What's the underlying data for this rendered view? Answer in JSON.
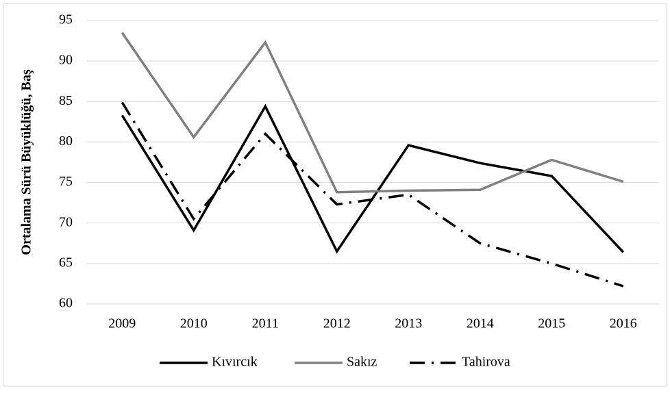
{
  "chart_data": {
    "type": "line",
    "y_label": "Ortalama Sürü Büyüklüğü, Baş",
    "categories": [
      "2009",
      "2010",
      "2011",
      "2012",
      "2013",
      "2014",
      "2015",
      "2016"
    ],
    "series": [
      {
        "name": "Kıvırcık",
        "color": "#000000",
        "dash": "solid",
        "values": [
          83.3,
          69.1,
          84.4,
          66.5,
          79.6,
          77.4,
          75.8,
          66.4
        ]
      },
      {
        "name": "Sakız",
        "color": "#808080",
        "dash": "solid",
        "values": [
          93.5,
          80.6,
          92.3,
          73.8,
          74.0,
          74.1,
          77.8,
          75.1
        ]
      },
      {
        "name": "Tahirova",
        "color": "#000000",
        "dash": "dashdot",
        "values": [
          84.9,
          70.5,
          81.0,
          72.3,
          73.5,
          67.5,
          65.0,
          62.2
        ]
      }
    ],
    "ylim": [
      60,
      95
    ],
    "yticks": [
      60,
      65,
      70,
      75,
      80,
      85,
      90,
      95
    ],
    "grid": true,
    "legend": "bottom"
  }
}
